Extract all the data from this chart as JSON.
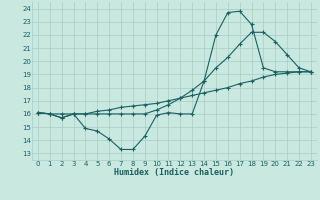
{
  "xlabel": "Humidex (Indice chaleur)",
  "xlim": [
    -0.5,
    23.5
  ],
  "ylim": [
    12.5,
    24.5
  ],
  "xticks": [
    0,
    1,
    2,
    3,
    4,
    5,
    6,
    7,
    8,
    9,
    10,
    11,
    12,
    13,
    14,
    15,
    16,
    17,
    18,
    19,
    20,
    21,
    22,
    23
  ],
  "yticks": [
    13,
    14,
    15,
    16,
    17,
    18,
    19,
    20,
    21,
    22,
    23,
    24
  ],
  "bg_color": "#c8e8e0",
  "grid_color": "#a8ccc8",
  "line_color": "#1a6060",
  "line1_x": [
    0,
    1,
    2,
    3,
    4,
    5,
    6,
    7,
    8,
    9,
    10,
    11,
    12,
    13,
    14,
    15,
    16,
    17,
    18,
    19,
    20,
    21,
    22,
    23
  ],
  "line1_y": [
    16.1,
    16.0,
    15.7,
    16.0,
    14.9,
    14.7,
    14.1,
    13.3,
    13.3,
    14.3,
    15.9,
    16.1,
    16.0,
    16.0,
    18.5,
    22.0,
    23.7,
    23.8,
    22.8,
    19.5,
    19.2,
    19.2,
    19.2,
    19.2
  ],
  "line2_x": [
    0,
    1,
    2,
    3,
    4,
    5,
    6,
    7,
    8,
    9,
    10,
    11,
    12,
    13,
    14,
    15,
    16,
    17,
    18,
    19,
    20,
    21,
    22,
    23
  ],
  "line2_y": [
    16.1,
    16.0,
    15.7,
    16.0,
    16.0,
    16.0,
    16.0,
    16.0,
    16.0,
    16.0,
    16.3,
    16.7,
    17.2,
    17.8,
    18.5,
    19.5,
    20.3,
    21.3,
    22.2,
    22.2,
    21.5,
    20.5,
    19.5,
    19.2
  ],
  "line3_x": [
    0,
    1,
    2,
    3,
    4,
    5,
    6,
    7,
    8,
    9,
    10,
    11,
    12,
    13,
    14,
    15,
    16,
    17,
    18,
    19,
    20,
    21,
    22,
    23
  ],
  "line3_y": [
    16.1,
    16.0,
    16.0,
    16.0,
    16.0,
    16.2,
    16.3,
    16.5,
    16.6,
    16.7,
    16.8,
    17.0,
    17.2,
    17.4,
    17.6,
    17.8,
    18.0,
    18.3,
    18.5,
    18.8,
    19.0,
    19.1,
    19.2,
    19.2
  ]
}
